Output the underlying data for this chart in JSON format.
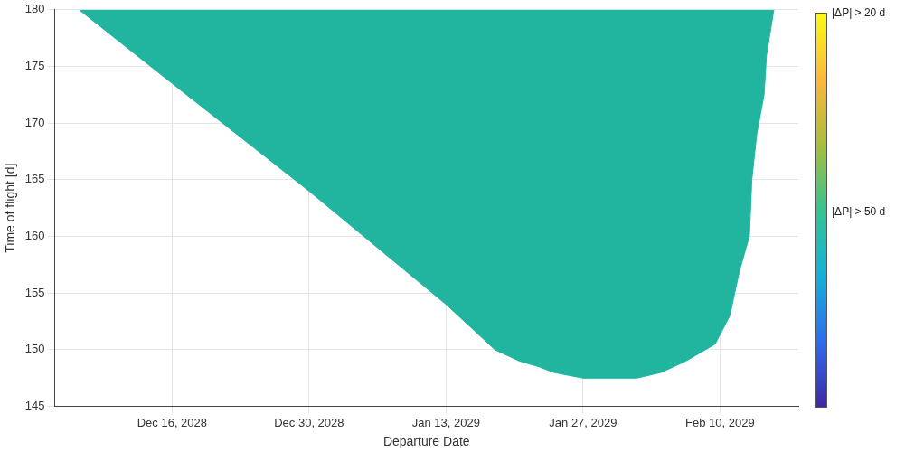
{
  "chart_data": {
    "type": "area",
    "xlabel": "Departure Date",
    "ylabel": "Time of flight [d]",
    "x": [
      "2028-12-06T12:00",
      "2028-12-16",
      "2028-12-30",
      "2029-01-13",
      "2029-01-18",
      "2029-01-20T12:00",
      "2029-01-22T12:00",
      "2029-01-24",
      "2029-01-27",
      "2029-02-01T12:00",
      "2029-02-04",
      "2029-02-06T12:00",
      "2029-02-09T12:00",
      "2029-02-11",
      "2029-02-12",
      "2029-02-13",
      "2029-02-13T06:00",
      "2029-02-13T18:00",
      "2029-02-14T12:00",
      "2029-02-14T18:00",
      "2029-02-15T12:00"
    ],
    "series": [
      {
        "color": "#21b5a0",
        "values": [
          180,
          173.5,
          164,
          154,
          150,
          149,
          148.5,
          148,
          147.5,
          147.5,
          148,
          149,
          150.5,
          153,
          157,
          160,
          165,
          169,
          172.5,
          176,
          180
        ]
      }
    ],
    "xlim": [
      "2028-12-04",
      "2029-02-18"
    ],
    "xticks": [
      {
        "value": "2028-12-16",
        "label": "Dec 16, 2028"
      },
      {
        "value": "2028-12-30",
        "label": "Dec 30, 2028"
      },
      {
        "value": "2029-01-13",
        "label": "Jan 13, 2029"
      },
      {
        "value": "2029-01-27",
        "label": "Jan 27, 2029"
      },
      {
        "value": "2029-02-10",
        "label": "Feb 10, 2029"
      }
    ],
    "ylim": [
      145,
      180
    ],
    "yticks": [
      145,
      150,
      155,
      160,
      165,
      170,
      175,
      180
    ],
    "grid": true,
    "legend": false,
    "annotations": [
      "|ΔP| > 20 d",
      "|ΔP| > 50 d"
    ]
  }
}
